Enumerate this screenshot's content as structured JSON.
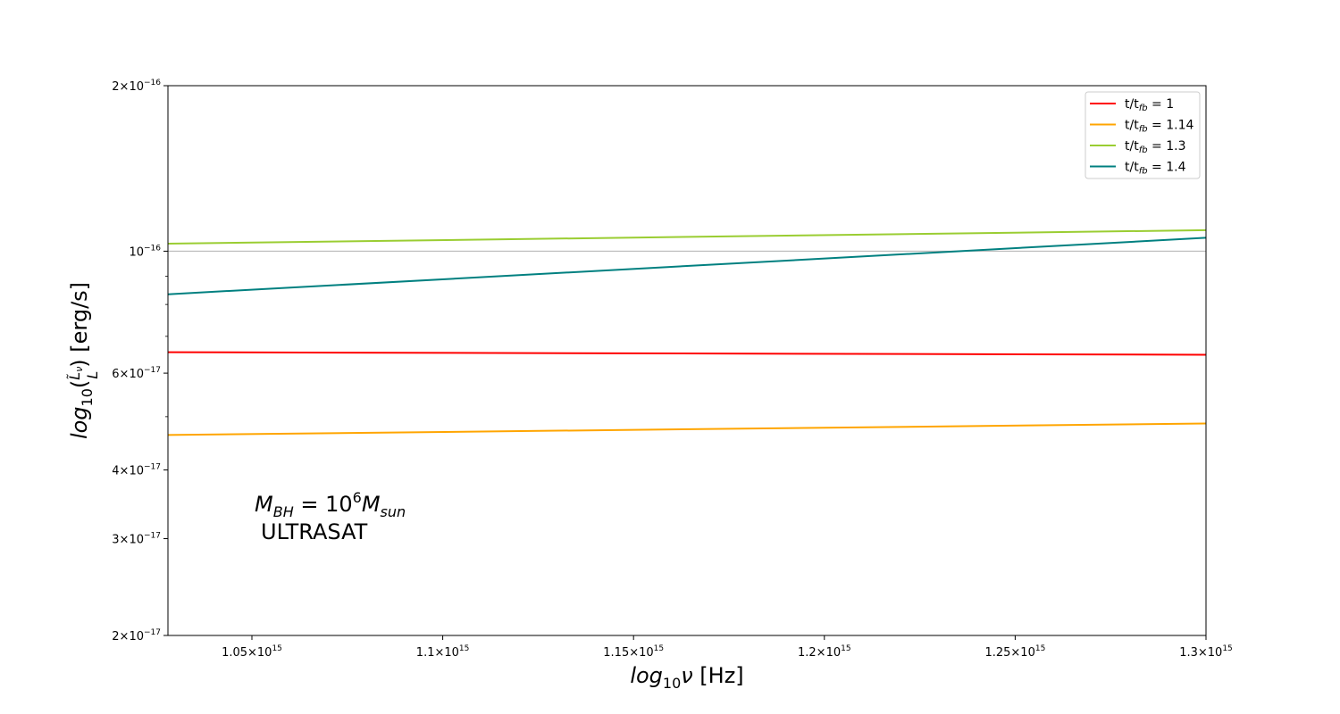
{
  "chart_data": {
    "type": "line",
    "xscale": "linear",
    "yscale": "log",
    "xlim": [
      1028000000000000.0,
      1300000000000000.0
    ],
    "ylim": [
      2e-17,
      2e-16
    ],
    "xlabel": {
      "base": "log",
      "sub": "10",
      "var": "ν",
      "unit": " [Hz]"
    },
    "ylabel": {
      "base": "log",
      "sub": "10",
      "num": "L̃",
      "num_sub": "ν",
      "den": "L",
      "unit": " [erg/s]"
    },
    "x_ticks": [
      {
        "value": 1050000000000000.0,
        "mantissa": "1.05",
        "exp": "15"
      },
      {
        "value": 1100000000000000.0,
        "mantissa": "1.1",
        "exp": "15"
      },
      {
        "value": 1150000000000000.0,
        "mantissa": "1.15",
        "exp": "15"
      },
      {
        "value": 1200000000000000.0,
        "mantissa": "1.2",
        "exp": "15"
      },
      {
        "value": 1250000000000000.0,
        "mantissa": "1.25",
        "exp": "15"
      },
      {
        "value": 1300000000000000.0,
        "mantissa": "1.3",
        "exp": "15"
      }
    ],
    "y_major_ticks": [
      {
        "value": 2e-16,
        "mantissa": "2",
        "exp": "−16"
      },
      {
        "value": 1e-16,
        "mantissa": "",
        "exp": "−16"
      },
      {
        "value": 6e-17,
        "mantissa": "6",
        "exp": "−17"
      },
      {
        "value": 4e-17,
        "mantissa": "4",
        "exp": "−17"
      },
      {
        "value": 3e-17,
        "mantissa": "3",
        "exp": "−17"
      },
      {
        "value": 2e-17,
        "mantissa": "2",
        "exp": "−17"
      }
    ],
    "y_minor_ticks": [
      5e-17,
      7e-17,
      8e-17,
      9e-17
    ],
    "gridline_at": 1e-16,
    "series": [
      {
        "name": "1",
        "color": "#ff0000",
        "x": [
          1028000000000000.0,
          1300000000000000.0
        ],
        "y": [
          6.55e-17,
          6.48e-17
        ]
      },
      {
        "name": "1.14",
        "color": "#ffa500",
        "x": [
          1028000000000000.0,
          1300000000000000.0
        ],
        "y": [
          4.63e-17,
          4.86e-17
        ]
      },
      {
        "name": "1.3",
        "color": "#9acd32",
        "x": [
          1028000000000000.0,
          1300000000000000.0
        ],
        "y": [
          1.032e-16,
          1.092e-16
        ]
      },
      {
        "name": "1.4",
        "color": "#008080",
        "x": [
          1028000000000000.0,
          1300000000000000.0
        ],
        "y": [
          8.35e-17,
          1.058e-16
        ]
      }
    ],
    "legend": {
      "position": "top-right",
      "prefix": "t/t",
      "prefix_sub": "fb",
      "equals": " = "
    },
    "annotation": {
      "line1": {
        "m": "M",
        "m_sub": "BH",
        "eq": " = 10",
        "sup": "6",
        "m2": "M",
        "m2_sub": "sun"
      },
      "line2": "ULTRASAT"
    }
  }
}
